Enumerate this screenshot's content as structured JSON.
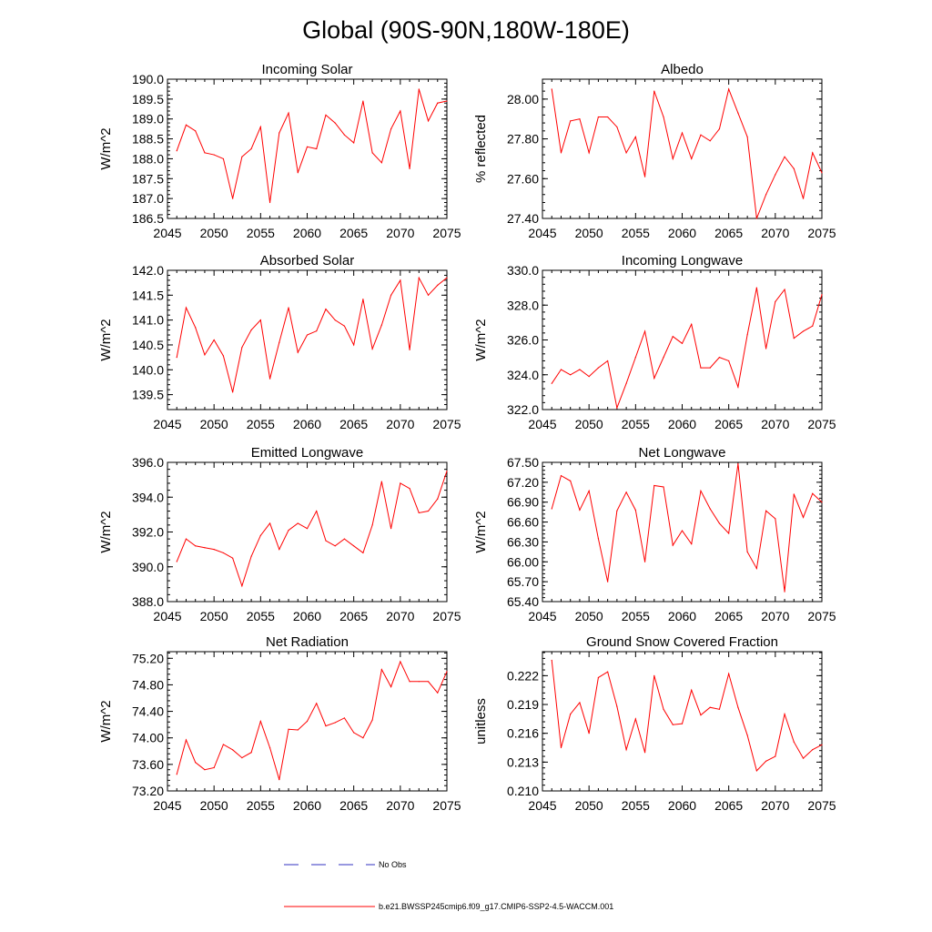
{
  "figure": {
    "title": "Global (90S-90N,180W-180E)",
    "line_color": "#ff0000",
    "obs_color": "#3030c0"
  },
  "legend": {
    "obs_label": "No Obs",
    "model_label": "b.e21.BWSSP245cmip6.f09_g17.CMIP6-SSP2-4.5-WACCM.001"
  },
  "chart_data": [
    {
      "type": "line",
      "title": "Incoming Solar",
      "ylabel": "W/m^2",
      "xlabel": "",
      "xlim": [
        2045,
        2075
      ],
      "ylim": [
        186.5,
        190.0
      ],
      "xticks": [
        2045,
        2050,
        2055,
        2060,
        2065,
        2070,
        2075
      ],
      "yticks": [
        "186.5",
        "187.0",
        "187.5",
        "188.0",
        "188.5",
        "189.0",
        "189.5",
        "190.0"
      ],
      "x": [
        2046,
        2047,
        2048,
        2049,
        2050,
        2051,
        2052,
        2053,
        2054,
        2055,
        2056,
        2057,
        2058,
        2059,
        2060,
        2061,
        2062,
        2063,
        2064,
        2065,
        2066,
        2067,
        2068,
        2069,
        2070,
        2071,
        2072,
        2073,
        2074,
        2075
      ],
      "series": [
        {
          "name": "b.e21.BWSSP245cmip6.f09_g17.CMIP6-SSP2-4.5-WACCM.001",
          "values": [
            188.2,
            188.85,
            188.7,
            188.15,
            188.1,
            188.0,
            187.0,
            188.05,
            188.25,
            188.8,
            186.9,
            188.65,
            189.15,
            187.65,
            188.3,
            188.25,
            189.1,
            188.9,
            188.6,
            188.4,
            189.45,
            188.15,
            187.9,
            188.75,
            189.2,
            187.75,
            189.75,
            188.95,
            189.4,
            189.45
          ]
        }
      ]
    },
    {
      "type": "line",
      "title": "Albedo",
      "ylabel": "% reflected",
      "xlabel": "",
      "xlim": [
        2045,
        2075
      ],
      "ylim": [
        27.4,
        28.1
      ],
      "xticks": [
        2045,
        2050,
        2055,
        2060,
        2065,
        2070,
        2075
      ],
      "yticks": [
        "27.40",
        "27.60",
        "27.80",
        "28.00"
      ],
      "x": [
        2046,
        2047,
        2048,
        2049,
        2050,
        2051,
        2052,
        2053,
        2054,
        2055,
        2056,
        2057,
        2058,
        2059,
        2060,
        2061,
        2062,
        2063,
        2064,
        2065,
        2066,
        2067,
        2068,
        2069,
        2070,
        2071,
        2072,
        2073,
        2074,
        2075
      ],
      "series": [
        {
          "name": "b.e21.BWSSP245cmip6.f09_g17.CMIP6-SSP2-4.5-WACCM.001",
          "values": [
            28.05,
            27.73,
            27.89,
            27.9,
            27.73,
            27.91,
            27.91,
            27.86,
            27.73,
            27.81,
            27.61,
            28.04,
            27.91,
            27.7,
            27.83,
            27.7,
            27.82,
            27.79,
            27.85,
            28.05,
            27.93,
            27.81,
            27.4,
            27.52,
            27.62,
            27.71,
            27.65,
            27.5,
            27.73,
            27.63
          ]
        }
      ]
    },
    {
      "type": "line",
      "title": "Absorbed Solar",
      "ylabel": "W/m^2",
      "xlabel": "",
      "xlim": [
        2045,
        2075
      ],
      "ylim": [
        139.2,
        142.0
      ],
      "xticks": [
        2045,
        2050,
        2055,
        2060,
        2065,
        2070,
        2075
      ],
      "yticks": [
        "139.5",
        "140.0",
        "140.5",
        "141.0",
        "141.5",
        "142.0"
      ],
      "x": [
        2046,
        2047,
        2048,
        2049,
        2050,
        2051,
        2052,
        2053,
        2054,
        2055,
        2056,
        2057,
        2058,
        2059,
        2060,
        2061,
        2062,
        2063,
        2064,
        2065,
        2066,
        2067,
        2068,
        2069,
        2070,
        2071,
        2072,
        2073,
        2074,
        2075
      ],
      "series": [
        {
          "name": "b.e21.BWSSP245cmip6.f09_g17.CMIP6-SSP2-4.5-WACCM.001",
          "values": [
            140.25,
            141.25,
            140.85,
            140.3,
            140.6,
            140.28,
            139.55,
            140.45,
            140.8,
            141.0,
            139.82,
            140.55,
            141.25,
            140.35,
            140.7,
            140.78,
            141.22,
            141.0,
            140.88,
            140.5,
            141.42,
            140.42,
            140.9,
            141.5,
            141.8,
            140.4,
            141.85,
            141.5,
            141.7,
            141.85
          ]
        }
      ]
    },
    {
      "type": "line",
      "title": "Incoming Longwave",
      "ylabel": "W/m^2",
      "xlabel": "",
      "xlim": [
        2045,
        2075
      ],
      "ylim": [
        322.0,
        330.0
      ],
      "xticks": [
        2045,
        2050,
        2055,
        2060,
        2065,
        2070,
        2075
      ],
      "yticks": [
        "322.0",
        "324.0",
        "326.0",
        "328.0",
        "330.0"
      ],
      "x": [
        2046,
        2047,
        2048,
        2049,
        2050,
        2051,
        2052,
        2053,
        2054,
        2055,
        2056,
        2057,
        2058,
        2059,
        2060,
        2061,
        2062,
        2063,
        2064,
        2065,
        2066,
        2067,
        2068,
        2069,
        2070,
        2071,
        2072,
        2073,
        2074,
        2075
      ],
      "series": [
        {
          "name": "b.e21.BWSSP245cmip6.f09_g17.CMIP6-SSP2-4.5-WACCM.001",
          "values": [
            323.5,
            324.3,
            324.0,
            324.3,
            323.9,
            324.4,
            324.8,
            322.1,
            323.5,
            325.0,
            326.5,
            323.8,
            325.0,
            326.2,
            325.8,
            326.9,
            324.4,
            324.4,
            325.0,
            324.8,
            323.3,
            326.3,
            329.0,
            325.5,
            328.2,
            328.9,
            326.1,
            326.5,
            326.8,
            328.6
          ]
        }
      ]
    },
    {
      "type": "line",
      "title": "Emitted Longwave",
      "ylabel": "W/m^2",
      "xlabel": "",
      "xlim": [
        2045,
        2075
      ],
      "ylim": [
        388.0,
        396.0
      ],
      "xticks": [
        2045,
        2050,
        2055,
        2060,
        2065,
        2070,
        2075
      ],
      "yticks": [
        "388.0",
        "390.0",
        "392.0",
        "394.0",
        "396.0"
      ],
      "x": [
        2046,
        2047,
        2048,
        2049,
        2050,
        2051,
        2052,
        2053,
        2054,
        2055,
        2056,
        2057,
        2058,
        2059,
        2060,
        2061,
        2062,
        2063,
        2064,
        2065,
        2066,
        2067,
        2068,
        2069,
        2070,
        2071,
        2072,
        2073,
        2074,
        2075
      ],
      "series": [
        {
          "name": "b.e21.BWSSP245cmip6.f09_g17.CMIP6-SSP2-4.5-WACCM.001",
          "values": [
            390.3,
            391.6,
            391.2,
            391.1,
            391.0,
            390.8,
            390.5,
            388.9,
            390.6,
            391.8,
            392.5,
            391.0,
            392.1,
            392.5,
            392.2,
            393.2,
            391.5,
            391.2,
            391.6,
            391.2,
            390.8,
            392.4,
            394.9,
            392.2,
            394.8,
            394.5,
            393.1,
            393.2,
            393.9,
            395.5
          ]
        }
      ]
    },
    {
      "type": "line",
      "title": "Net Longwave",
      "ylabel": "W/m^2",
      "xlabel": "",
      "xlim": [
        2045,
        2075
      ],
      "ylim": [
        65.4,
        67.5
      ],
      "xticks": [
        2045,
        2050,
        2055,
        2060,
        2065,
        2070,
        2075
      ],
      "yticks": [
        "65.40",
        "65.70",
        "66.00",
        "66.30",
        "66.60",
        "66.90",
        "67.20",
        "67.50"
      ],
      "x": [
        2046,
        2047,
        2048,
        2049,
        2050,
        2051,
        2052,
        2053,
        2054,
        2055,
        2056,
        2057,
        2058,
        2059,
        2060,
        2061,
        2062,
        2063,
        2064,
        2065,
        2066,
        2067,
        2068,
        2069,
        2070,
        2071,
        2072,
        2073,
        2074,
        2075
      ],
      "series": [
        {
          "name": "b.e21.BWSSP245cmip6.f09_g17.CMIP6-SSP2-4.5-WACCM.001",
          "values": [
            66.8,
            67.3,
            67.22,
            66.78,
            67.07,
            66.35,
            65.7,
            66.77,
            67.05,
            66.78,
            66.0,
            67.15,
            67.13,
            66.25,
            66.47,
            66.27,
            67.07,
            66.8,
            66.58,
            66.43,
            67.48,
            66.15,
            65.9,
            66.77,
            66.65,
            65.55,
            67.02,
            66.67,
            67.03,
            66.9
          ]
        }
      ]
    },
    {
      "type": "line",
      "title": "Net Radiation",
      "ylabel": "W/m^2",
      "xlabel": "",
      "xlim": [
        2045,
        2075
      ],
      "ylim": [
        73.2,
        75.3
      ],
      "xticks": [
        2045,
        2050,
        2055,
        2060,
        2065,
        2070,
        2075
      ],
      "yticks": [
        "73.20",
        "73.60",
        "74.00",
        "74.40",
        "74.80",
        "75.20"
      ],
      "x": [
        2046,
        2047,
        2048,
        2049,
        2050,
        2051,
        2052,
        2053,
        2054,
        2055,
        2056,
        2057,
        2058,
        2059,
        2060,
        2061,
        2062,
        2063,
        2064,
        2065,
        2066,
        2067,
        2068,
        2069,
        2070,
        2071,
        2072,
        2073,
        2074,
        2075
      ],
      "series": [
        {
          "name": "b.e21.BWSSP245cmip6.f09_g17.CMIP6-SSP2-4.5-WACCM.001",
          "values": [
            73.45,
            73.97,
            73.63,
            73.52,
            73.55,
            73.9,
            73.82,
            73.7,
            73.78,
            74.25,
            73.85,
            73.37,
            74.13,
            74.12,
            74.25,
            74.52,
            74.18,
            74.23,
            74.3,
            74.08,
            74.0,
            74.27,
            75.03,
            74.77,
            75.15,
            74.85,
            74.85,
            74.85,
            74.68,
            75.0
          ]
        }
      ]
    },
    {
      "type": "line",
      "title": "Ground Snow Covered Fraction",
      "ylabel": "unitless",
      "xlabel": "",
      "xlim": [
        2045,
        2075
      ],
      "ylim": [
        0.21,
        0.2245
      ],
      "xticks": [
        2045,
        2050,
        2055,
        2060,
        2065,
        2070,
        2075
      ],
      "yticks": [
        "0.210",
        "0.213",
        "0.216",
        "0.219",
        "0.222"
      ],
      "x": [
        2046,
        2047,
        2048,
        2049,
        2050,
        2051,
        2052,
        2053,
        2054,
        2055,
        2056,
        2057,
        2058,
        2059,
        2060,
        2061,
        2062,
        2063,
        2064,
        2065,
        2066,
        2067,
        2068,
        2069,
        2070,
        2071,
        2072,
        2073,
        2074,
        2075
      ],
      "series": [
        {
          "name": "b.e21.BWSSP245cmip6.f09_g17.CMIP6-SSP2-4.5-WACCM.001",
          "values": [
            0.2236,
            0.2145,
            0.218,
            0.2192,
            0.216,
            0.2218,
            0.2224,
            0.2188,
            0.2143,
            0.2175,
            0.214,
            0.222,
            0.2185,
            0.2169,
            0.217,
            0.2205,
            0.2179,
            0.2187,
            0.2185,
            0.2222,
            0.2187,
            0.2158,
            0.2121,
            0.2131,
            0.2136,
            0.218,
            0.2151,
            0.2134,
            0.2143,
            0.2148
          ]
        }
      ]
    }
  ]
}
